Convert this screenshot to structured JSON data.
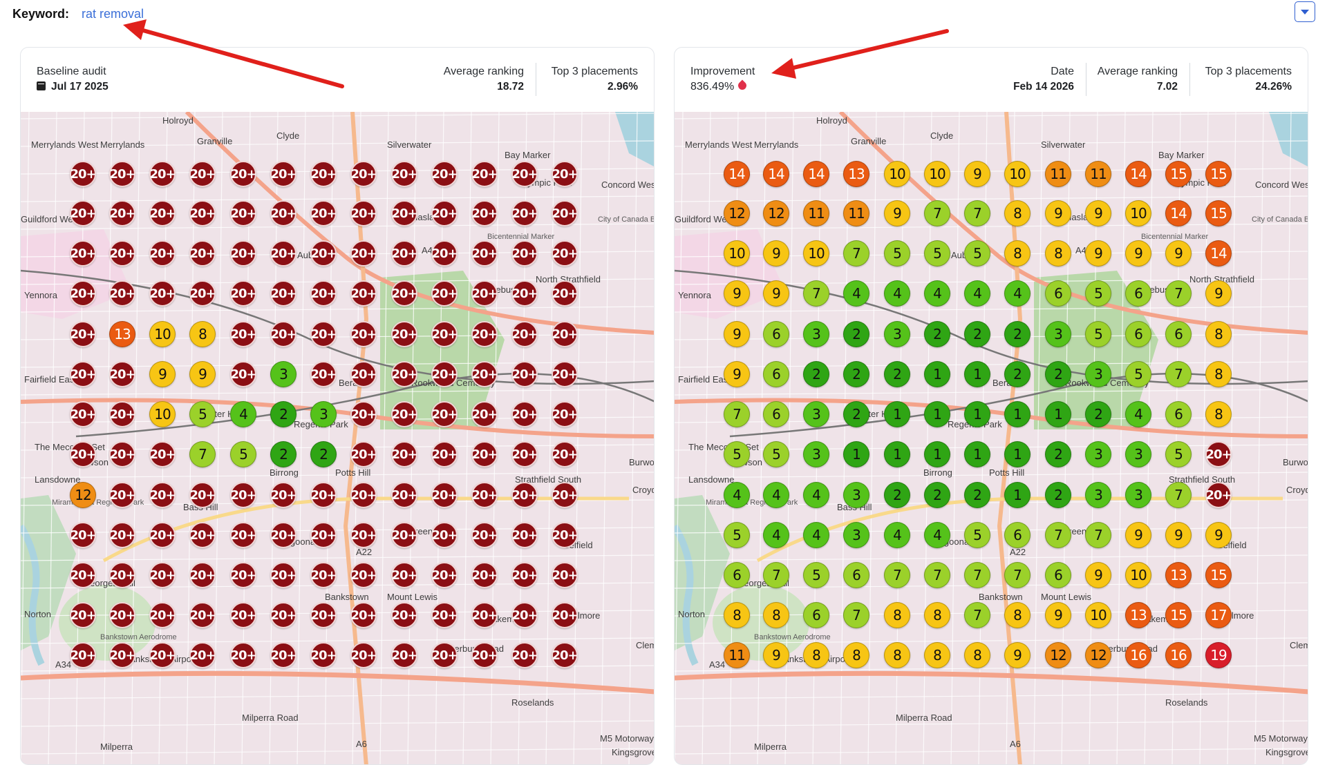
{
  "keyword": {
    "label": "Keyword:",
    "value": "rat removal"
  },
  "colors": {
    "accent": "#2f5fd0",
    "pin_dark": "#8b0f14",
    "pin_red": "#d81e2a",
    "pin_orange": "#ea5b12",
    "pin_amber": "#ef8d14",
    "pin_yellow": "#f7c514",
    "pin_lime": "#9bd12a",
    "pin_green": "#55c21a",
    "pin_dgreen": "#2fa514",
    "annotation_arrow": "#e0201b"
  },
  "icons": {
    "calendar": "calendar-icon",
    "improvement": "flame-drop-icon",
    "dropdown": "chevron-down-icon"
  },
  "baseline": {
    "title": "Baseline audit",
    "date": "Jul 17 2025",
    "avg_label": "Average ranking",
    "avg_value": "18.72",
    "top3_label": "Top 3 placements",
    "top3_value": "2.96%"
  },
  "current": {
    "improvement_label": "Improvement",
    "improvement_value": "836.49%",
    "date_label": "Date",
    "date_value": "Feb 14 2026",
    "avg_label": "Average ranking",
    "avg_value": "7.02",
    "top3_label": "Top 3 placements",
    "top3_value": "24.26%"
  },
  "map_labels": [
    "Holroyd",
    "Merrylands West",
    "Merrylands",
    "Granville",
    "Clyde",
    "Silverwater",
    "Bay Marker",
    "Concord West",
    "Olympic Park",
    "Guildford West",
    "Haslams",
    "City of Canada Bay Council",
    "Auburn",
    "A44",
    "Bicentennial Marker",
    "North Strathfield",
    "Yennora",
    "Homebush",
    "Fairfield East",
    "Berala",
    "Rookwood Cemetery",
    "Chester Hill",
    "Regents Park",
    "The Meccano Set",
    "Lansdowne",
    "Birrong",
    "Potts Hill",
    "Strathfield South",
    "Croydon",
    "Mirambeena Regional Park",
    "Bass Hill",
    "Yagoona",
    "Greenacre",
    "A22",
    "Belfield",
    "Georges Hall",
    "Bankstown",
    "Mount Lewis",
    "Lakemba",
    "Belmore",
    "Norton",
    "Bankstown Aerodrome",
    "Bankstown Airport",
    "A34",
    "Roselands",
    "Milperra",
    "Kingsgrove",
    "M5 Motorway",
    "A6",
    "Milperra Road",
    "Burwood",
    "Canterbury Road",
    "Clemton Park",
    "Rawson"
  ],
  "baseline_grid": [
    [
      "20+",
      "20+",
      "20+",
      "20+",
      "20+",
      "20+",
      "20+",
      "20+",
      "20+",
      "20+",
      "20+",
      "20+",
      "20+"
    ],
    [
      "20+",
      "20+",
      "20+",
      "20+",
      "20+",
      "20+",
      "20+",
      "20+",
      "20+",
      "20+",
      "20+",
      "20+",
      "20+"
    ],
    [
      "20+",
      "20+",
      "20+",
      "20+",
      "20+",
      "20+",
      "20+",
      "20+",
      "20+",
      "20+",
      "20+",
      "20+",
      "20+"
    ],
    [
      "20+",
      "20+",
      "20+",
      "20+",
      "20+",
      "20+",
      "20+",
      "20+",
      "20+",
      "20+",
      "20+",
      "20+",
      "20+"
    ],
    [
      "20+",
      "13",
      "10",
      "8",
      "20+",
      "20+",
      "20+",
      "20+",
      "20+",
      "20+",
      "20+",
      "20+",
      "20+"
    ],
    [
      "20+",
      "20+",
      "9",
      "9",
      "20+",
      "3",
      "20+",
      "20+",
      "20+",
      "20+",
      "20+",
      "20+",
      "20+"
    ],
    [
      "20+",
      "20+",
      "10",
      "5",
      "4",
      "2",
      "3",
      "20+",
      "20+",
      "20+",
      "20+",
      "20+",
      "20+"
    ],
    [
      "20+",
      "20+",
      "20+",
      "7",
      "5",
      "2",
      "2",
      "20+",
      "20+",
      "20+",
      "20+",
      "20+",
      "20+"
    ],
    [
      "12",
      "20+",
      "20+",
      "20+",
      "20+",
      "20+",
      "20+",
      "20+",
      "20+",
      "20+",
      "20+",
      "20+",
      "20+"
    ],
    [
      "20+",
      "20+",
      "20+",
      "20+",
      "20+",
      "20+",
      "20+",
      "20+",
      "20+",
      "20+",
      "20+",
      "20+",
      "20+"
    ],
    [
      "20+",
      "20+",
      "20+",
      "20+",
      "20+",
      "20+",
      "20+",
      "20+",
      "20+",
      "20+",
      "20+",
      "20+",
      "20+"
    ],
    [
      "20+",
      "20+",
      "20+",
      "20+",
      "20+",
      "20+",
      "20+",
      "20+",
      "20+",
      "20+",
      "20+",
      "20+",
      "20+"
    ],
    [
      "20+",
      "20+",
      "20+",
      "20+",
      "20+",
      "20+",
      "20+",
      "20+",
      "20+",
      "20+",
      "20+",
      "20+",
      "20+"
    ]
  ],
  "current_grid": [
    [
      "14",
      "14",
      "14",
      "13",
      "10",
      "10",
      "9",
      "10",
      "11",
      "11",
      "14",
      "15",
      "15"
    ],
    [
      "12",
      "12",
      "11",
      "11",
      "9",
      "7",
      "7",
      "8",
      "9",
      "9",
      "10",
      "14",
      "15"
    ],
    [
      "10",
      "9",
      "10",
      "7",
      "5",
      "5",
      "5",
      "8",
      "8",
      "9",
      "9",
      "9",
      "14"
    ],
    [
      "9",
      "9",
      "7",
      "4",
      "4",
      "4",
      "4",
      "4",
      "6",
      "5",
      "6",
      "7",
      "9"
    ],
    [
      "9",
      "6",
      "3",
      "2",
      "3",
      "2",
      "2",
      "2",
      "3",
      "5",
      "6",
      "6",
      "8"
    ],
    [
      "9",
      "6",
      "2",
      "2",
      "2",
      "1",
      "1",
      "2",
      "2",
      "3",
      "5",
      "7",
      "8"
    ],
    [
      "7",
      "6",
      "3",
      "2",
      "1",
      "1",
      "1",
      "1",
      "1",
      "2",
      "4",
      "6",
      "8"
    ],
    [
      "5",
      "5",
      "3",
      "1",
      "1",
      "1",
      "1",
      "1",
      "2",
      "3",
      "3",
      "5",
      "20+"
    ],
    [
      "4",
      "4",
      "4",
      "3",
      "2",
      "2",
      "2",
      "1",
      "2",
      "3",
      "3",
      "7",
      "20+"
    ],
    [
      "5",
      "4",
      "4",
      "3",
      "4",
      "4",
      "5",
      "6",
      "7",
      "7",
      "9",
      "9",
      "9"
    ],
    [
      "6",
      "7",
      "5",
      "6",
      "7",
      "7",
      "7",
      "7",
      "6",
      "9",
      "10",
      "13",
      "15"
    ],
    [
      "8",
      "8",
      "6",
      "7",
      "8",
      "8",
      "7",
      "8",
      "9",
      "10",
      "13",
      "15",
      "17"
    ],
    [
      "11",
      "9",
      "8",
      "8",
      "8",
      "8",
      "8",
      "9",
      "12",
      "12",
      "16",
      "16",
      "19"
    ]
  ]
}
